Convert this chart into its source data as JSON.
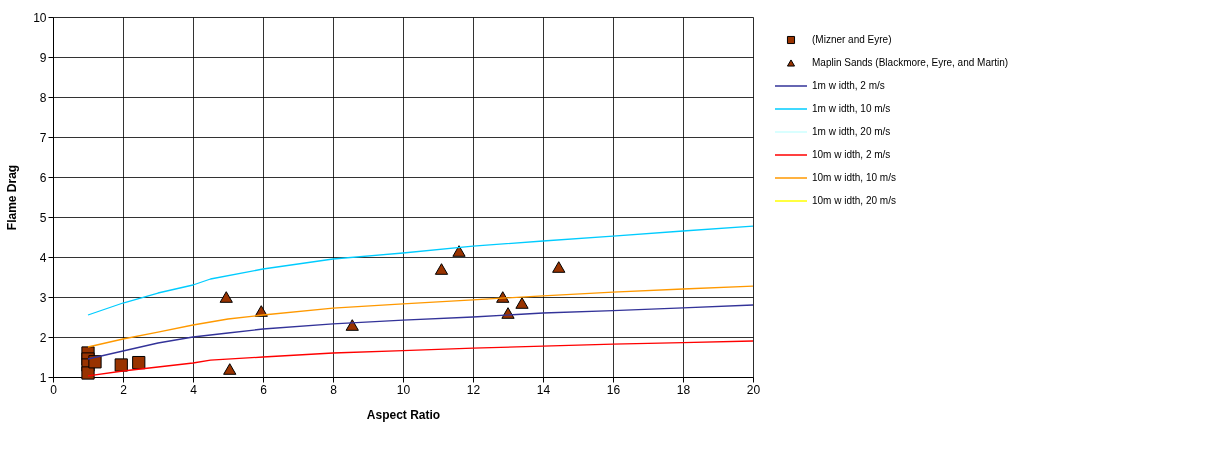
{
  "chart_data": {
    "type": "scatter",
    "xlabel": "Aspect Ratio",
    "ylabel": "Flame Drag",
    "xlim": [
      0,
      20
    ],
    "ylim": [
      1,
      10
    ],
    "xticks": [
      0,
      2,
      4,
      6,
      8,
      10,
      12,
      14,
      16,
      18,
      20
    ],
    "yticks": [
      1,
      2,
      3,
      4,
      5,
      6,
      7,
      8,
      9,
      10
    ],
    "grid": true,
    "legend": "right",
    "series": [
      {
        "name": "(Mizner and Eyre)",
        "marker": "square",
        "color": "#993300",
        "x": [
          1,
          1,
          1,
          1,
          1.2,
          1.95,
          2.45
        ],
        "values": [
          1.6,
          1.45,
          1.3,
          1.1,
          1.38,
          1.3,
          1.36
        ]
      },
      {
        "name": "Maplin Sands (Blackmore, Eyre, and Martin)",
        "marker": "triangle",
        "color": "#993300",
        "x": [
          4.95,
          5.05,
          5.95,
          8.55,
          11.1,
          11.6,
          12.85,
          13.0,
          13.4,
          14.45
        ],
        "values": [
          3.0,
          1.2,
          2.65,
          2.3,
          3.7,
          4.15,
          3.0,
          2.6,
          2.85,
          3.75
        ]
      },
      {
        "name": "1m w idth, 2 m/s",
        "type": "line",
        "color": "#333399",
        "x": [
          1,
          2,
          3,
          4,
          5,
          6,
          8,
          10,
          12,
          14,
          16,
          18,
          20
        ],
        "values": [
          1.45,
          1.65,
          1.85,
          2.0,
          2.1,
          2.2,
          2.33,
          2.42,
          2.5,
          2.6,
          2.66,
          2.73,
          2.8
        ]
      },
      {
        "name": "1m w idth, 10 m/s",
        "type": "line",
        "color": "#00ccff",
        "x": [
          1,
          2,
          3,
          4,
          4.5,
          6,
          8,
          10,
          12,
          14,
          16,
          18,
          20
        ],
        "values": [
          2.55,
          2.85,
          3.1,
          3.3,
          3.45,
          3.7,
          3.95,
          4.1,
          4.27,
          4.4,
          4.52,
          4.65,
          4.77
        ]
      },
      {
        "name": "1m w idth, 20 m/s",
        "type": "line",
        "color": "#ccffff"
      },
      {
        "name": "10m w idth, 2 m/s",
        "type": "line",
        "color": "#ff0000",
        "x": [
          1,
          2,
          3,
          4,
          4.5,
          6,
          8,
          10,
          12,
          14,
          16,
          18,
          20
        ],
        "values": [
          1.03,
          1.15,
          1.25,
          1.35,
          1.42,
          1.5,
          1.6,
          1.66,
          1.72,
          1.77,
          1.82,
          1.86,
          1.9
        ]
      },
      {
        "name": "10m w idth, 10 m/s",
        "type": "line",
        "color": "#ff9900",
        "x": [
          1,
          2,
          3,
          4,
          5,
          6,
          8,
          10,
          12,
          14,
          16,
          18,
          20
        ],
        "values": [
          1.75,
          1.95,
          2.12,
          2.3,
          2.45,
          2.55,
          2.72,
          2.83,
          2.93,
          3.03,
          3.12,
          3.2,
          3.27
        ]
      },
      {
        "name": "10m w idth, 20 m/s",
        "type": "line",
        "color": "#ffff00"
      }
    ]
  }
}
